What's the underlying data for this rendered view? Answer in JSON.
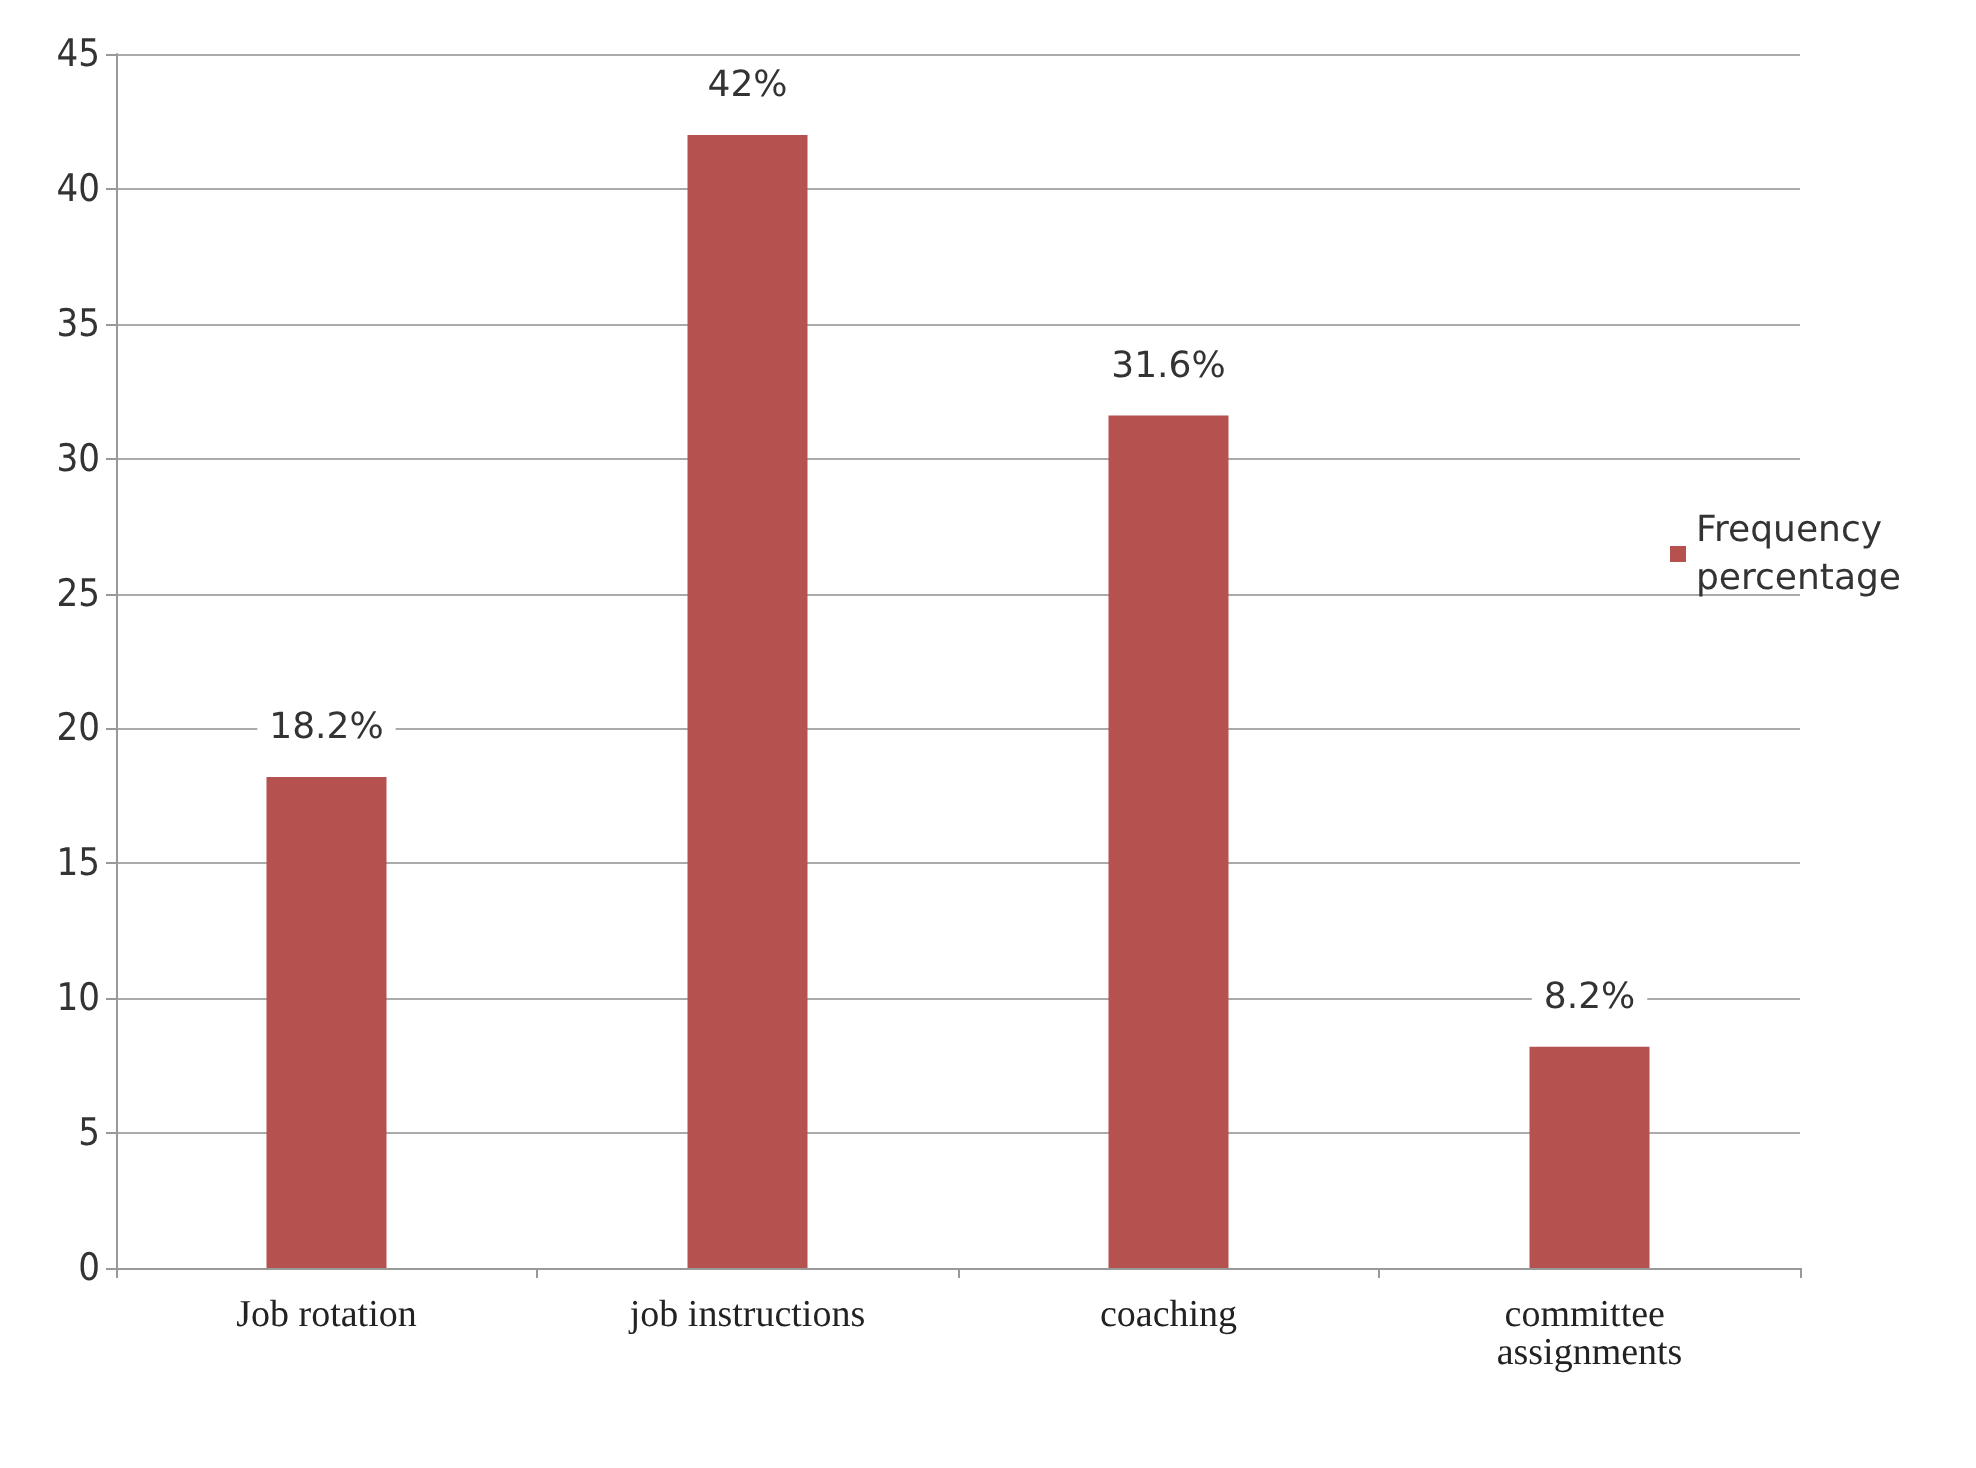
{
  "chart_data": {
    "type": "bar",
    "categories": [
      "Job rotation",
      "job instructions",
      "coaching",
      "committee assignments"
    ],
    "series": [
      {
        "name": "Frequency percentage",
        "color": "#b5514f",
        "values": [
          18.2,
          42,
          31.6,
          8.2
        ],
        "value_labels": [
          "18.2%",
          "42%",
          "31.6%",
          "8.2%"
        ]
      }
    ],
    "ylim": [
      0,
      45
    ],
    "yticks": [
      0,
      5,
      10,
      15,
      20,
      25,
      30,
      35,
      40,
      45
    ],
    "grid": "y",
    "legend": "right"
  }
}
